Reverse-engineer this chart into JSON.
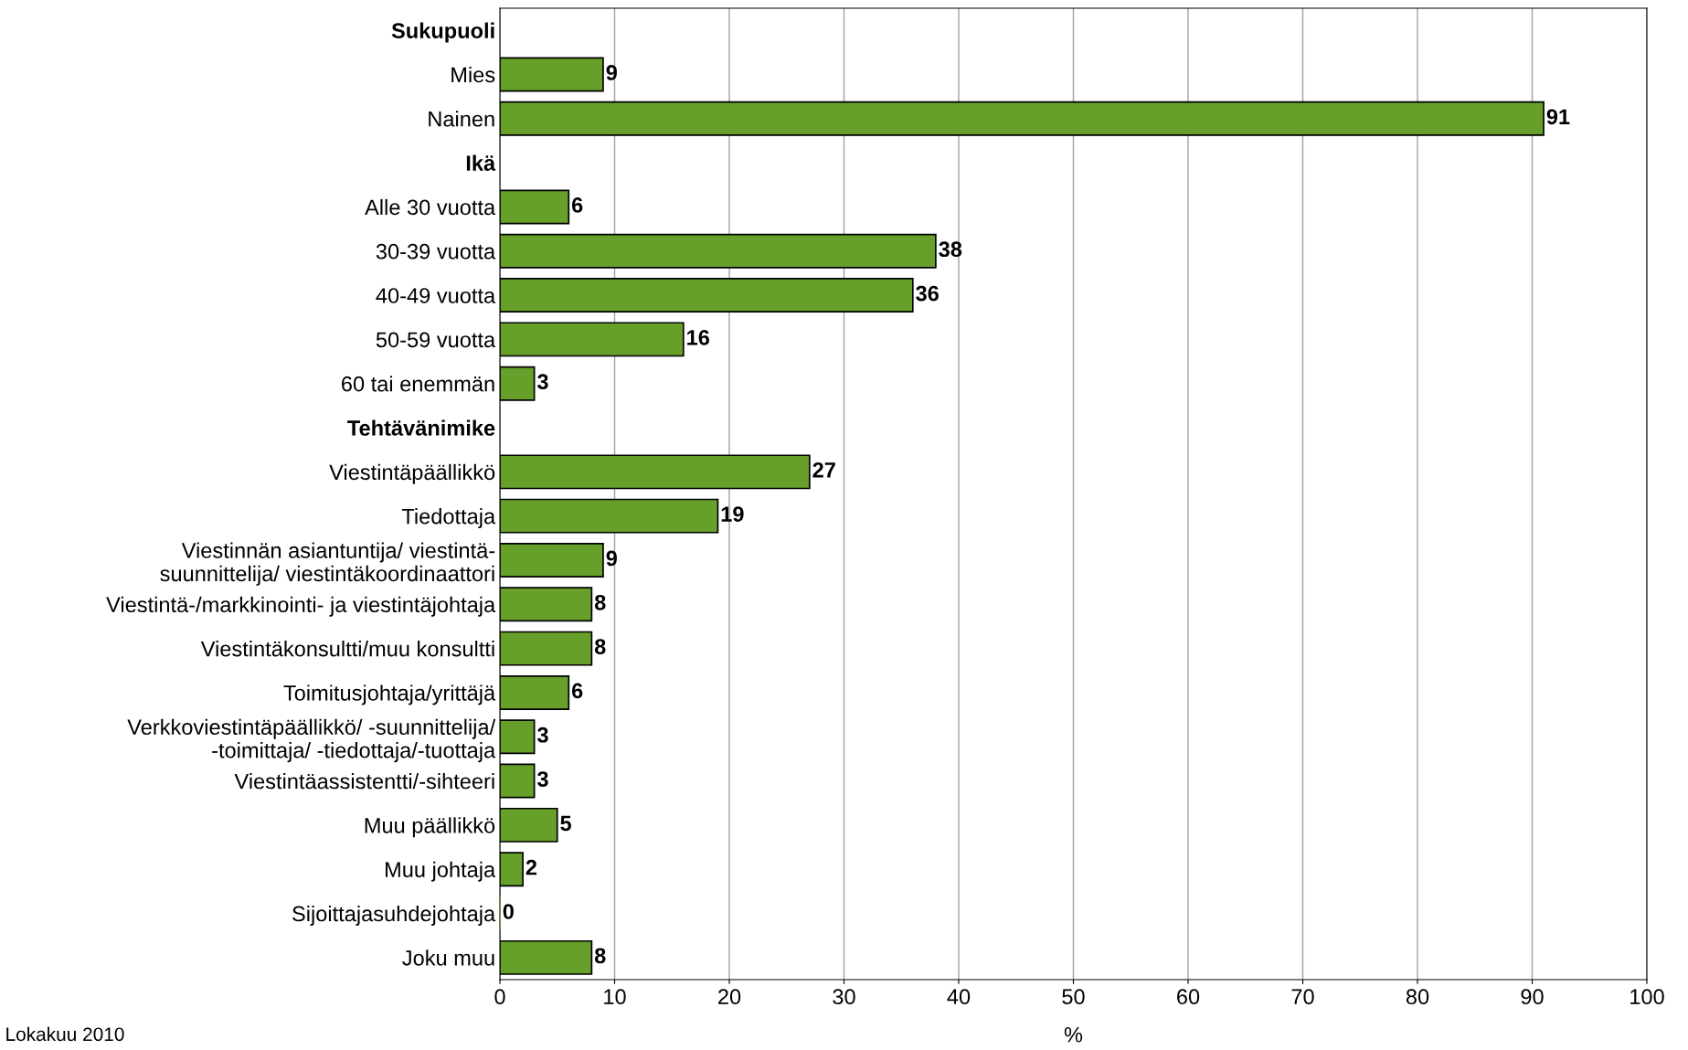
{
  "chart_data": {
    "type": "bar",
    "orientation": "horizontal",
    "xlabel": "%",
    "categories": [
      "Sukupuoli",
      "Mies",
      "Nainen",
      "Ikä",
      "Alle 30 vuotta",
      "30-39 vuotta",
      "40-49 vuotta",
      "50-59 vuotta",
      "60 tai enemmän",
      "Tehtävänimike",
      "Viestintäpäällikkö",
      "Tiedottaja",
      "Viestinnän asiantuntija/ viestintä-\nsuunnittelija/ viestintäkoordinaattori",
      "Viestintä-/markkinointi- ja viestintäjohtaja",
      "Viestintäkonsultti/muu konsultti",
      "Toimitusjohtaja/yrittäjä",
      "Verkkoviestintäpäällikkö/ -suunnittelija/\n-toimittaja/ -tiedottaja/-tuottaja",
      "Viestintäassistentti/-sihteeri",
      "Muu päällikkö",
      "Muu johtaja",
      "Sijoittajasuhdejohtaja",
      "Joku muu"
    ],
    "values": [
      null,
      9,
      91,
      null,
      6,
      38,
      36,
      16,
      3,
      null,
      27,
      19,
      9,
      8,
      8,
      6,
      3,
      3,
      5,
      2,
      0,
      8
    ],
    "color": "#66a02a",
    "data_labels": true,
    "xlim": [
      0,
      100
    ],
    "xticks": [
      0,
      10,
      20,
      30,
      40,
      50,
      60,
      70,
      80,
      90,
      100
    ],
    "grid": "x",
    "annotations": [
      "Lokakuu 2010"
    ]
  }
}
